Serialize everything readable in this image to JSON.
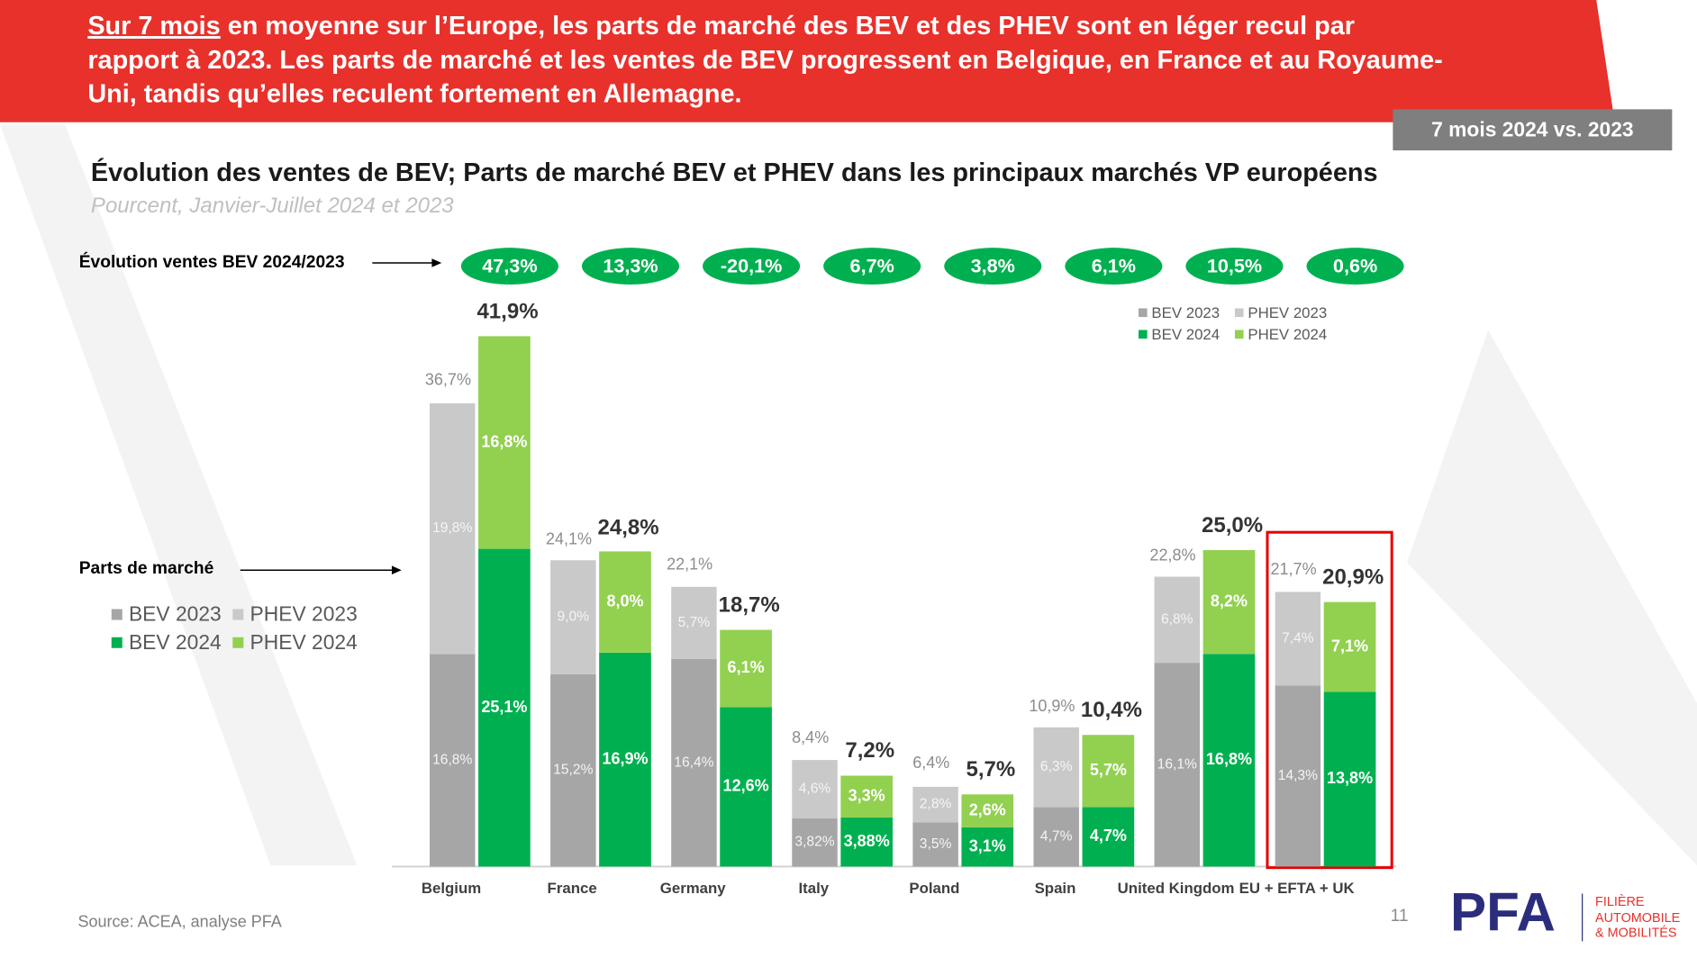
{
  "header": {
    "headline": [
      "Sur 7 mois",
      " en moyenne sur l’Europe, les parts de marché des BEV et des PHEV sont en léger recul par",
      "rapport à 2023. Les parts de marché et les ventes de BEV progressent en Belgique, en France et au Royaume-",
      "Uni, tandis qu’elles reculent fortement en Allemagne."
    ],
    "badge": "7 mois 2024 vs. 2023"
  },
  "chart_data": {
    "type": "bar",
    "title": "Évolution des ventes de BEV; Parts de marché BEV et PHEV dans les principaux marchés VP européens",
    "subtitle": "Pourcent, Janvier-Juillet 2024 et 2023",
    "categories": [
      "Belgium",
      "France",
      "Germany",
      "Italy",
      "Poland",
      "Spain",
      "United Kingdom",
      "EU + EFTA + UK"
    ],
    "series": [
      {
        "name": "BEV 2023",
        "color": "#a6a6a6",
        "values": [
          16.8,
          15.2,
          16.4,
          3.82,
          3.5,
          4.7,
          16.1,
          14.3
        ],
        "value_labels": [
          "16,8%",
          "15,2%",
          "16,4%",
          "3,82%",
          "3,5%",
          "4,7%",
          "16,1%",
          "14,3%"
        ]
      },
      {
        "name": "PHEV 2023",
        "color": "#c9c9c9",
        "values": [
          19.8,
          9.0,
          5.7,
          4.6,
          2.8,
          6.3,
          6.8,
          7.4
        ],
        "value_labels": [
          "19,8%",
          "9,0%",
          "5,7%",
          "4,6%",
          "2,8%",
          "6,3%",
          "6,8%",
          "7,4%"
        ]
      },
      {
        "name": "BEV 2024",
        "color": "#00b050",
        "values": [
          25.1,
          16.9,
          12.6,
          3.88,
          3.1,
          4.7,
          16.8,
          13.8
        ],
        "value_labels": [
          "25,1%",
          "16,9%",
          "12,6%",
          "3,88%",
          "3,1%",
          "4,7%",
          "16,8%",
          "13,8%"
        ]
      },
      {
        "name": "PHEV 2024",
        "color": "#92d050",
        "values": [
          16.8,
          8.0,
          6.1,
          3.3,
          2.6,
          5.7,
          8.2,
          7.1
        ],
        "value_labels": [
          "16,8%",
          "8,0%",
          "6,1%",
          "3,3%",
          "2,6%",
          "5,7%",
          "8,2%",
          "7,1%"
        ]
      }
    ],
    "totals": [
      {
        "values": [
          36.7,
          24.1,
          22.1,
          8.4,
          6.4,
          10.9,
          22.8,
          21.7
        ],
        "value_labels": [
          "36,7%",
          "24,1%",
          "22,1%",
          "8,4%",
          "6,4%",
          "10,9%",
          "22,8%",
          "21,7%"
        ]
      },
      {
        "values": [
          41.9,
          24.8,
          18.7,
          7.2,
          5.7,
          10.4,
          25.0,
          20.9
        ],
        "value_labels": [
          "41,9%",
          "24,8%",
          "18,7%",
          "7,2%",
          "5,7%",
          "10,4%",
          "25,0%",
          "20,9%"
        ]
      }
    ],
    "sales_growth": {
      "label": "Évolution ventes BEV 2024/2023",
      "color": "#00b050",
      "values": [
        47.3,
        13.3,
        -20.1,
        6.7,
        3.8,
        6.1,
        10.5,
        0.6
      ],
      "value_labels": [
        "47,3%",
        "13,3%",
        "-20,1%",
        "6,7%",
        "3,8%",
        "6,1%",
        "10,5%",
        "0,6%"
      ]
    },
    "share_label": "Parts de marché"
  },
  "footer": {
    "source": "Source: ACEA, analyse PFA",
    "page": "11",
    "logo": "PFA",
    "logo_text": [
      "FILIÈRE",
      "AUTOMOBILE",
      "& MOBILITÉS"
    ]
  }
}
